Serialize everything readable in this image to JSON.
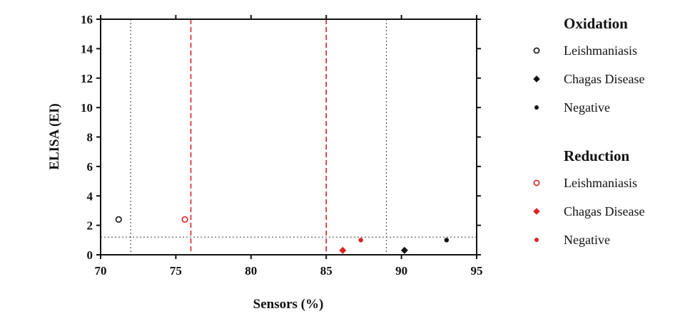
{
  "chart_data": {
    "type": "scatter",
    "xlabel": "Sensors (%)",
    "ylabel": "ELISA (EI)",
    "xlim": [
      70,
      95
    ],
    "ylim": [
      0,
      16
    ],
    "x_ticks": [
      70,
      75,
      80,
      85,
      90,
      95
    ],
    "y_ticks": [
      0,
      2,
      4,
      6,
      8,
      10,
      12,
      14,
      16
    ],
    "grid": false,
    "legend_position": "right",
    "reference_lines": [
      {
        "axis": "x",
        "value": 72,
        "color": "#555555",
        "style": "dotted"
      },
      {
        "axis": "x",
        "value": 89,
        "color": "#555555",
        "style": "dotted"
      },
      {
        "axis": "x",
        "value": 76,
        "color": "#dd2222",
        "style": "dashed"
      },
      {
        "axis": "x",
        "value": 85,
        "color": "#dd2222",
        "style": "dashed"
      },
      {
        "axis": "y",
        "value": 1.2,
        "color": "#555555",
        "style": "dotted"
      }
    ],
    "groups": [
      {
        "title": "Oxidation",
        "color": "#111111",
        "series": [
          {
            "name": "Leishmaniasis",
            "marker": "open-circle",
            "points": [
              {
                "x": 71.2,
                "y": 2.4
              }
            ]
          },
          {
            "name": "Chagas Disease",
            "marker": "diamond",
            "points": [
              {
                "x": 90.2,
                "y": 0.3
              }
            ]
          },
          {
            "name": "Negative",
            "marker": "dot",
            "points": [
              {
                "x": 93.0,
                "y": 1.0
              }
            ]
          }
        ]
      },
      {
        "title": "Reduction",
        "color": "#dd2222",
        "series": [
          {
            "name": "Leishmaniasis",
            "marker": "open-circle",
            "points": [
              {
                "x": 75.6,
                "y": 2.4
              }
            ]
          },
          {
            "name": "Chagas Disease",
            "marker": "diamond",
            "points": [
              {
                "x": 86.1,
                "y": 0.3
              }
            ]
          },
          {
            "name": "Negative",
            "marker": "dot",
            "points": [
              {
                "x": 87.3,
                "y": 1.0
              }
            ]
          }
        ]
      }
    ]
  }
}
